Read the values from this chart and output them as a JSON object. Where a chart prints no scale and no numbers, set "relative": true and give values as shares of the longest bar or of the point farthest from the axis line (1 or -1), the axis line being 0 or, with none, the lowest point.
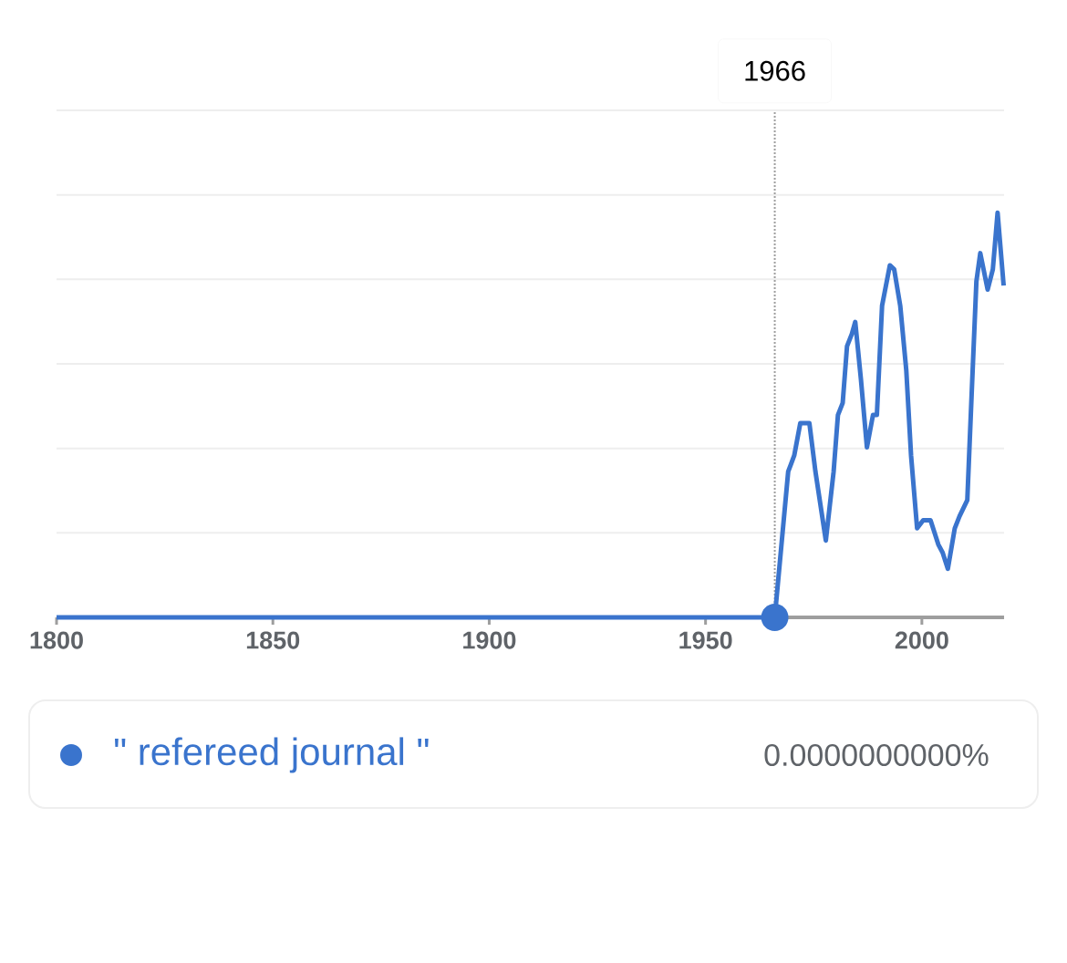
{
  "chart_data": {
    "type": "line",
    "relative": true,
    "x": [
      1800,
      1966,
      1969.1,
      1970.5,
      1971.9,
      1974.0,
      1975.4,
      1977.8,
      1979.6,
      1980.6,
      1981.7,
      1982.7,
      1983.8,
      1984.6,
      1985.9,
      1987.3,
      1988.7,
      1989.6,
      1990.8,
      1992.6,
      1993.6,
      1995.0,
      1996.4,
      1997.5,
      1998.9,
      2000.3,
      2002.0,
      2003.8,
      2004.8,
      2006.0,
      2007.6,
      2008.7,
      2010.5,
      2011.5,
      2012.6,
      2013.5,
      2015.2,
      2016.4,
      2017.5,
      2018.9
    ],
    "series": [
      {
        "name": "\" refereed journal \"",
        "color": "#3a74cd",
        "values": [
          0,
          0,
          0.36,
          0.4,
          0.48,
          0.48,
          0.36,
          0.19,
          0.36,
          0.5,
          0.53,
          0.67,
          0.7,
          0.73,
          0.59,
          0.42,
          0.5,
          0.5,
          0.77,
          0.87,
          0.86,
          0.77,
          0.61,
          0.4,
          0.22,
          0.24,
          0.24,
          0.18,
          0.16,
          0.12,
          0.22,
          0.25,
          0.29,
          0.55,
          0.83,
          0.9,
          0.81,
          0.86,
          1.0,
          0.82
        ]
      }
    ],
    "xlim": [
      1800,
      2019
    ],
    "xticks": [
      1800,
      1850,
      1900,
      1950,
      2000
    ],
    "grid": "y",
    "legend": "bottom",
    "line_style": "solid",
    "ref_lines": [
      {
        "axis": "x",
        "value": 1966,
        "label": "1966",
        "line_style": "dotted",
        "color": "#9e9e9e"
      }
    ],
    "annotations": [
      "0.0000000000%"
    ]
  }
}
